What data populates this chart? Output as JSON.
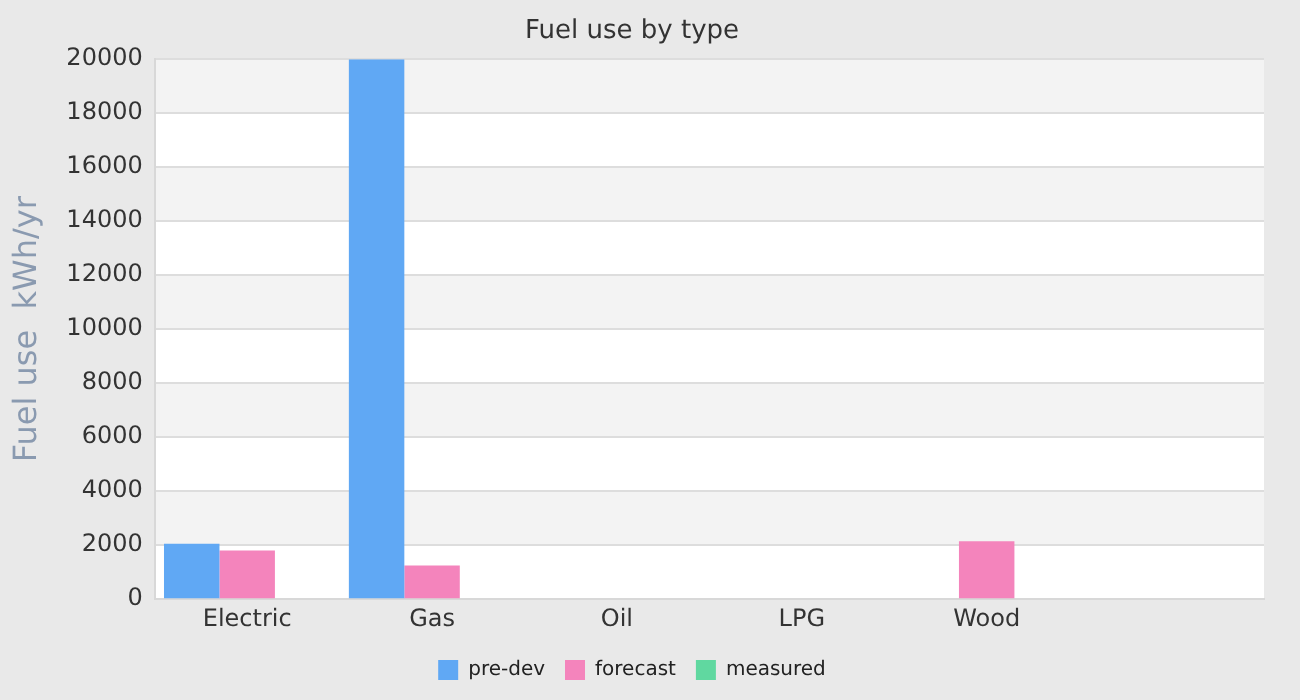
{
  "chart_data": {
    "type": "bar",
    "title": "Fuel use by type",
    "ylabel": "Fuel use  kWh/yr",
    "categories": [
      "Electric",
      "Gas",
      "Oil",
      "LPG",
      "Wood",
      null
    ],
    "series": [
      {
        "name": "pre-dev",
        "color": "#60a8f4",
        "values": [
          2050,
          20000,
          null,
          null,
          null,
          null
        ]
      },
      {
        "name": "forecast",
        "color": "#f484bc",
        "values": [
          1800,
          1250,
          null,
          null,
          2150,
          null
        ]
      },
      {
        "name": "measured",
        "color": "#60d8a0",
        "values": [
          null,
          null,
          null,
          null,
          null,
          null
        ]
      }
    ],
    "ylim": [
      0,
      20000
    ],
    "yticks": [
      0,
      2000,
      4000,
      6000,
      8000,
      10000,
      12000,
      14000,
      16000,
      18000,
      20000
    ],
    "grid": "y",
    "legend": "bottom"
  }
}
